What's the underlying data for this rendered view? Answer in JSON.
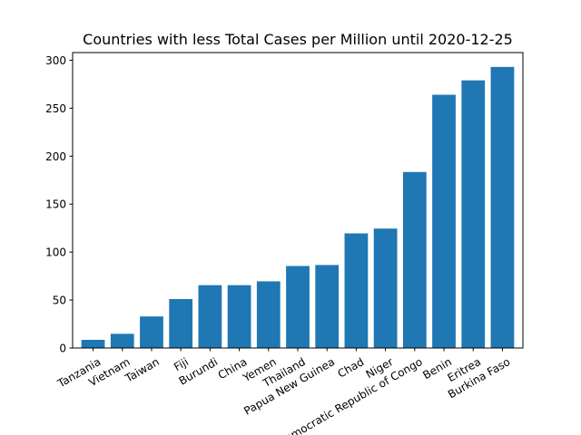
{
  "chart_data": {
    "type": "bar",
    "title": "Countries with less Total Cases per Million until 2020-12-25",
    "xlabel": "",
    "ylabel": "",
    "categories": [
      "Tanzania",
      "Vietnam",
      "Taiwan",
      "Fiji",
      "Burundi",
      "China",
      "Yemen",
      "Thailand",
      "Papua New Guinea",
      "Chad",
      "Niger",
      "Democratic Republic of Congo",
      "Benin",
      "Eritrea",
      "Burkina Faso"
    ],
    "values": [
      8.5,
      14.8,
      32.9,
      51.0,
      65.5,
      65.5,
      69.5,
      85.5,
      86.5,
      119.5,
      124.5,
      183.5,
      264.0,
      279.0,
      293.0
    ],
    "ylim": [
      0,
      308
    ],
    "yticks": [
      0,
      50,
      100,
      150,
      200,
      250,
      300
    ],
    "bar_color": "#1f77b4",
    "grid": false,
    "legend": "none"
  }
}
